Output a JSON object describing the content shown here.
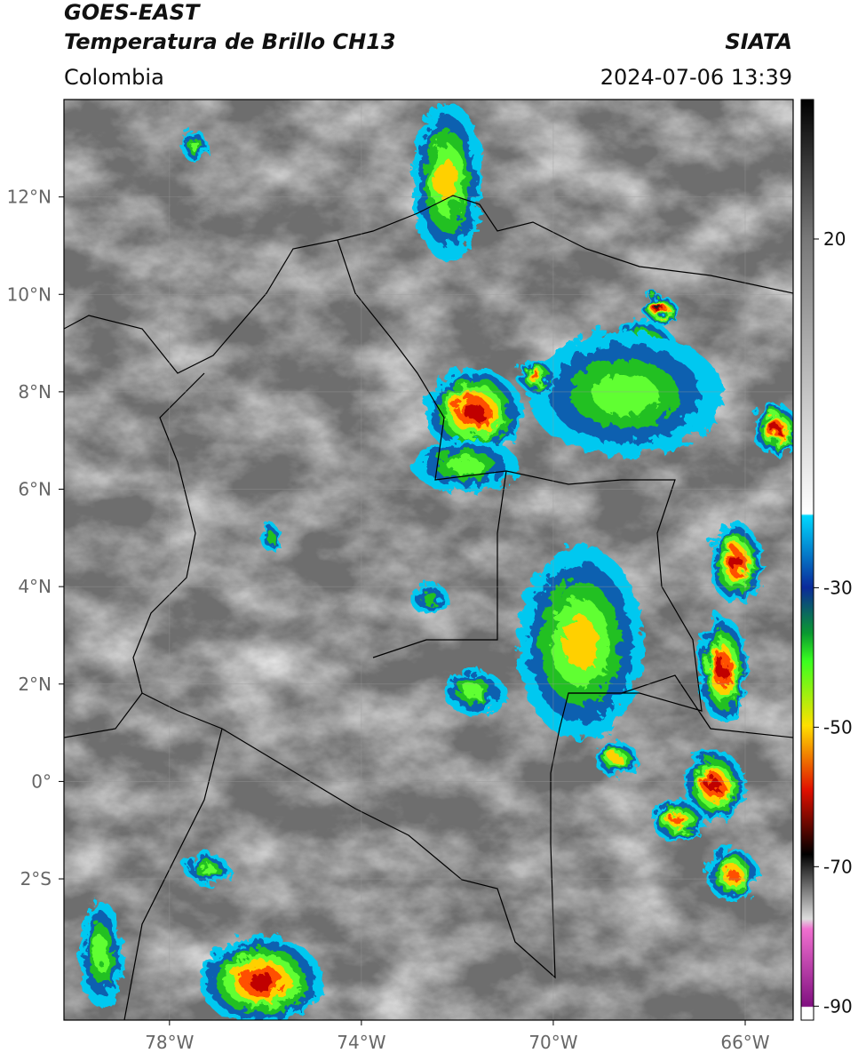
{
  "header": {
    "satellite": "GOES-EAST",
    "product": "Temperatura de Brillo CH13",
    "source": "SIATA",
    "region": "Colombia",
    "datetime": "2024-07-06 13:39"
  },
  "map": {
    "xlim": [
      -80.2,
      -65
    ],
    "ylim": [
      -4.9,
      14
    ],
    "grid": true,
    "xticks": [
      {
        "value": -78,
        "label": "78°W"
      },
      {
        "value": -74,
        "label": "74°W"
      },
      {
        "value": -70,
        "label": "70°W"
      },
      {
        "value": -66,
        "label": "66°W"
      }
    ],
    "yticks": [
      {
        "value": 12,
        "label": "12°N"
      },
      {
        "value": 10,
        "label": "10°N"
      },
      {
        "value": 8,
        "label": "8°N"
      },
      {
        "value": 6,
        "label": "6°N"
      },
      {
        "value": 4,
        "label": "4°N"
      },
      {
        "value": 2,
        "label": "2°N"
      },
      {
        "value": 0,
        "label": "0°"
      },
      {
        "value": -2,
        "label": "2°S"
      }
    ]
  },
  "colorbar": {
    "lim": [
      -92,
      40
    ],
    "ticks": [
      20,
      -30,
      -50,
      -70,
      -90
    ]
  }
}
